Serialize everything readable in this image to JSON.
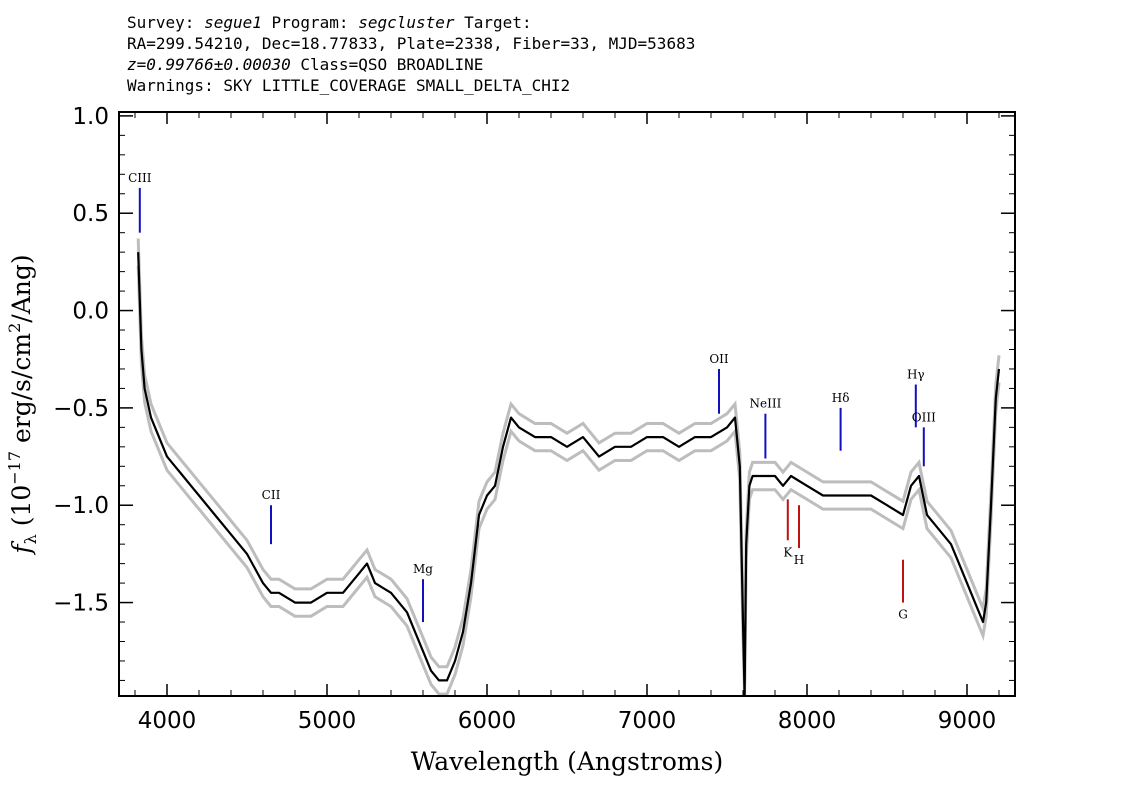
{
  "header": {
    "line1": {
      "survey_label": "Survey: ",
      "survey": "segue1",
      "program_label": " Program: ",
      "program": "segcluster",
      "target_label": " Target:"
    },
    "line2": "RA=299.54210, Dec=18.77833, Plate=2338, Fiber=33, MJD=53683",
    "line3": {
      "redshift": "z=0.99766±0.00030",
      "class": " Class=QSO BROADLINE"
    },
    "line4": "Warnings: SKY LITTLE_COVERAGE SMALL_DELTA_CHI2"
  },
  "chart_data": {
    "type": "line",
    "xlabel": "Wavelength (Angstroms)",
    "ylabel_parts": {
      "f": "f",
      "sub": "λ",
      "open": " (10",
      "exp1": "−17",
      "mid": " erg/s/cm",
      "exp2": "2",
      "close": "/Ang)"
    },
    "xlim": [
      3700,
      9300
    ],
    "ylim": [
      -1.98,
      1.02
    ],
    "x_ticks": [
      4000,
      5000,
      6000,
      7000,
      8000,
      9000
    ],
    "x_tick_labels": [
      "4000",
      "5000",
      "6000",
      "7000",
      "8000",
      "9000"
    ],
    "y_ticks": [
      1.0,
      0.5,
      0.0,
      -0.5,
      -1.0,
      -1.5
    ],
    "y_tick_labels": [
      "1.0",
      "0.5",
      "0.0",
      "−0.5",
      "−1.0",
      "−1.5"
    ],
    "spectrum_x": [
      3820,
      3840,
      3860,
      3900,
      3950,
      4000,
      4050,
      4100,
      4150,
      4200,
      4300,
      4400,
      4500,
      4600,
      4650,
      4700,
      4800,
      4900,
      5000,
      5100,
      5200,
      5250,
      5300,
      5400,
      5500,
      5550,
      5600,
      5650,
      5700,
      5750,
      5800,
      5850,
      5900,
      5950,
      6000,
      6050,
      6100,
      6150,
      6200,
      6300,
      6400,
      6500,
      6600,
      6700,
      6800,
      6900,
      7000,
      7100,
      7200,
      7300,
      7400,
      7500,
      7550,
      7580,
      7600,
      7610,
      7620,
      7640,
      7660,
      7700,
      7750,
      7800,
      7850,
      7900,
      8000,
      8100,
      8200,
      8300,
      8400,
      8500,
      8600,
      8650,
      8700,
      8750,
      8800,
      8850,
      8900,
      8950,
      9000,
      9050,
      9100,
      9120,
      9150,
      9180,
      9200
    ],
    "spectrum_y": [
      0.3,
      -0.2,
      -0.4,
      -0.55,
      -0.65,
      -0.75,
      -0.8,
      -0.85,
      -0.9,
      -0.95,
      -1.05,
      -1.15,
      -1.25,
      -1.4,
      -1.45,
      -1.45,
      -1.5,
      -1.5,
      -1.45,
      -1.45,
      -1.35,
      -1.3,
      -1.4,
      -1.45,
      -1.55,
      -1.65,
      -1.75,
      -1.85,
      -1.9,
      -1.9,
      -1.8,
      -1.65,
      -1.4,
      -1.05,
      -0.95,
      -0.9,
      -0.7,
      -0.55,
      -0.6,
      -0.65,
      -0.65,
      -0.7,
      -0.65,
      -0.75,
      -0.7,
      -0.7,
      -0.65,
      -0.65,
      -0.7,
      -0.65,
      -0.65,
      -0.6,
      -0.55,
      -0.8,
      -1.6,
      -1.98,
      -1.2,
      -0.9,
      -0.85,
      -0.85,
      -0.85,
      -0.85,
      -0.9,
      -0.85,
      -0.9,
      -0.95,
      -0.95,
      -0.95,
      -0.95,
      -1.0,
      -1.05,
      -0.9,
      -0.85,
      -1.05,
      -1.1,
      -1.15,
      -1.2,
      -1.3,
      -1.4,
      -1.5,
      -1.6,
      -1.5,
      -1.0,
      -0.45,
      -0.3
    ],
    "noise_band": 0.07,
    "emission_lines": [
      {
        "label": "CIII",
        "x": 3830,
        "y_top": 0.63,
        "y_bottom": 0.4
      },
      {
        "label": "CII",
        "x": 4650,
        "y_top": -1.0,
        "y_bottom": -1.2
      },
      {
        "label": "Mg",
        "x": 5600,
        "y_top": -1.38,
        "y_bottom": -1.6
      },
      {
        "label": "OII",
        "x": 7450,
        "y_top": -0.3,
        "y_bottom": -0.53
      },
      {
        "label": "NeIII",
        "x": 7740,
        "y_top": -0.53,
        "y_bottom": -0.76
      },
      {
        "label": "Hδ",
        "x": 8210,
        "y_top": -0.5,
        "y_bottom": -0.72
      },
      {
        "label": "Hγ",
        "x": 8680,
        "y_top": -0.38,
        "y_bottom": -0.6
      },
      {
        "label": "OIII",
        "x": 8730,
        "y_top": -0.6,
        "y_bottom": -0.8
      }
    ],
    "absorption_lines": [
      {
        "label": "K",
        "x": 7880,
        "y_top": -0.97,
        "y_bottom": -1.18
      },
      {
        "label": "H",
        "x": 7950,
        "y_top": -1.0,
        "y_bottom": -1.22
      },
      {
        "label": "G",
        "x": 8600,
        "y_top": -1.28,
        "y_bottom": -1.5
      }
    ],
    "colors": {
      "spectrum": "#000000",
      "noise": "#bdbdbd",
      "emission": "#1010c0",
      "absorption": "#c01010"
    }
  }
}
